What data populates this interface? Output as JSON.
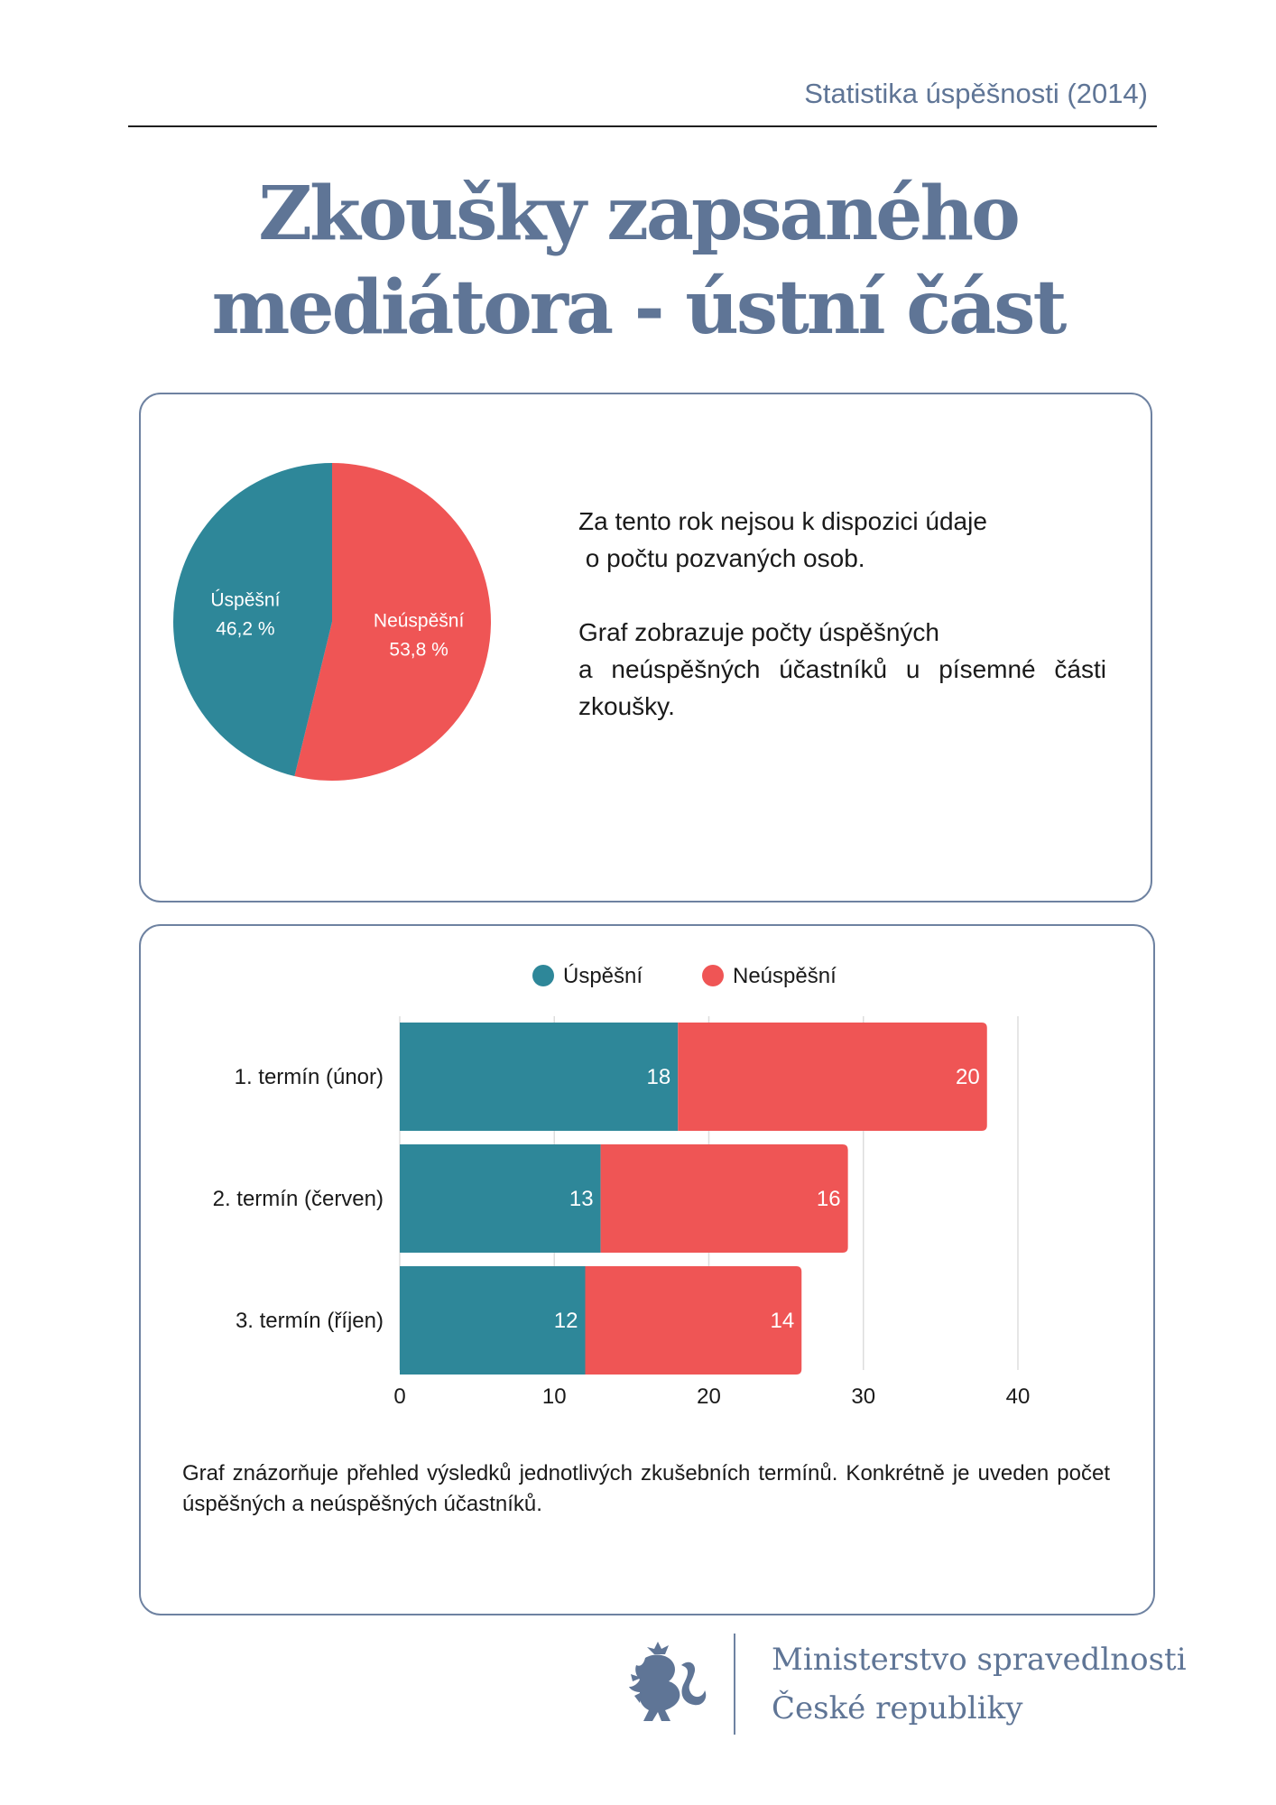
{
  "header": {
    "text": "Statistika úspěšnosti (2014)"
  },
  "title": {
    "line1": "Zkoušky zapsaného",
    "line2": "mediátora - ústní část"
  },
  "pie_card": {
    "paragraph1": [
      "Za tento rok nejsou k dispozici údaje",
      " o počtu pozvaných osob."
    ],
    "paragraph2": [
      "Graf zobrazuje počty úspěšných",
      "a neúspěšných účastníků u písemné části zkoušky."
    ]
  },
  "bar_card": {
    "caption": "Graf znázorňuje přehled výsledků jednotlivých zkušebních termínů. Konkrétně je uveden počet úspěšných a neúspěšných účastníků."
  },
  "footer": {
    "line1": "Ministerstvo spravedlnosti",
    "line2": "České republiky",
    "logo_icon": "lion-emblem-icon"
  },
  "colors": {
    "success": "#2e8799",
    "failure": "#ef5555",
    "accent": "#5f7596"
  },
  "chart_data": [
    {
      "type": "pie",
      "slices": [
        {
          "label": "Úspěšní",
          "value": 46.2,
          "value_label": "46,2 %",
          "color": "#2e8799"
        },
        {
          "label": "Neúspěšní",
          "value": 53.8,
          "value_label": "53,8 %",
          "color": "#ef5555"
        }
      ]
    },
    {
      "type": "bar",
      "orientation": "horizontal",
      "stacked": true,
      "categories": [
        "1. termín (únor)",
        "2. termín (červen)",
        "3. termín (říjen)"
      ],
      "series": [
        {
          "name": "Úspěšní",
          "values": [
            18,
            13,
            12
          ],
          "color": "#2e8799"
        },
        {
          "name": "Neúspěšní",
          "values": [
            20,
            16,
            14
          ],
          "color": "#ef5555"
        }
      ],
      "xlim": [
        0,
        40
      ],
      "xticks": [
        0,
        10,
        20,
        30,
        40
      ],
      "grid": true,
      "legend": "top"
    }
  ]
}
